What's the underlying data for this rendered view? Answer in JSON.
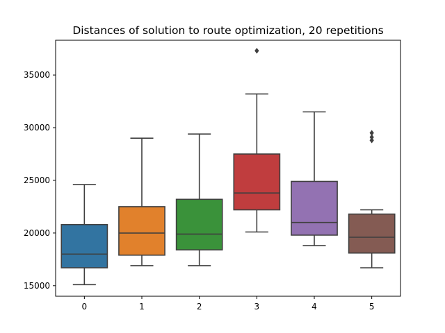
{
  "chart_data": {
    "type": "box",
    "title": "Distances of solution to route optimization, 20 repetitions",
    "xlabel": "",
    "ylabel": "",
    "categories": [
      "0",
      "1",
      "2",
      "3",
      "4",
      "5"
    ],
    "boxes": [
      {
        "category": "0",
        "whisker_low": 15100,
        "q1": 16700,
        "median": 18000,
        "q3": 20800,
        "whisker_high": 24600,
        "outliers": [],
        "color": "#3274a1"
      },
      {
        "category": "1",
        "whisker_low": 16900,
        "q1": 17900,
        "median": 20000,
        "q3": 22500,
        "whisker_high": 29000,
        "outliers": [],
        "color": "#e1812c"
      },
      {
        "category": "2",
        "whisker_low": 16900,
        "q1": 18400,
        "median": 19900,
        "q3": 23200,
        "whisker_high": 29400,
        "outliers": [],
        "color": "#3a923a"
      },
      {
        "category": "3",
        "whisker_low": 20100,
        "q1": 22200,
        "median": 23800,
        "q3": 27500,
        "whisker_high": 33200,
        "outliers": [
          37300
        ],
        "color": "#c03d3e"
      },
      {
        "category": "4",
        "whisker_low": 18800,
        "q1": 19800,
        "median": 21000,
        "q3": 24900,
        "whisker_high": 31500,
        "outliers": [],
        "color": "#9372b2"
      },
      {
        "category": "5",
        "whisker_low": 16700,
        "q1": 18100,
        "median": 19600,
        "q3": 21800,
        "whisker_high": 22200,
        "outliers": [
          28800,
          29100,
          29500
        ],
        "color": "#845b53"
      }
    ],
    "yticks": [
      15000,
      20000,
      25000,
      30000,
      35000
    ],
    "ylim": [
      14000,
      38300
    ],
    "grid": false,
    "line_color": "#3f3f3f"
  }
}
